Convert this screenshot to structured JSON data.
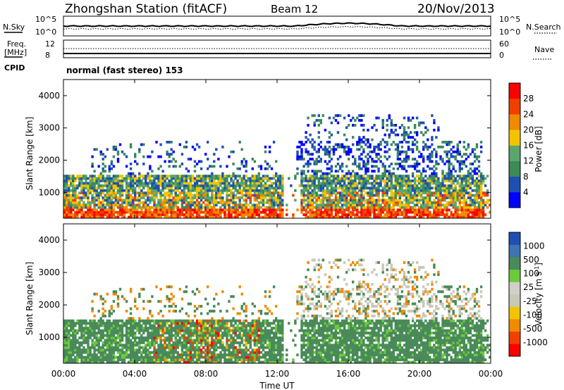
{
  "header": {
    "station": "Zhongshan Station (fitACF)",
    "beam": "Beam 12",
    "date": "20/Nov/2013"
  },
  "param_panels": {
    "nsky_label": "N.Sky",
    "nsky_ticks": [
      "10^5",
      "10^0"
    ],
    "nsearch_label": "N.Search",
    "nsearch_ticks": [
      "10^5",
      "10^0"
    ],
    "freq_label": "Freq.",
    "freq_unit": "[MHz]",
    "freq_ticks": [
      "12",
      "8"
    ],
    "nave_label": "Nave",
    "nave_ticks": [
      "60",
      "0"
    ],
    "cpid_label": "CPID",
    "mode_text": "normal (fast stereo) 153"
  },
  "colors": {
    "power_scale": [
      "#0000ff",
      "#1f4fb4",
      "#3a8a5a",
      "#5aa66e",
      "#f2c400",
      "#f08a00",
      "#f04000",
      "#ff0000"
    ],
    "velocity_scale": [
      "#ff0000",
      "#f04000",
      "#f08a00",
      "#f2c400",
      "#c8c8b8",
      "#d0d0c8",
      "#6acb3a",
      "#4a8a5a",
      "#3f74b0",
      "#1f4fb4"
    ]
  },
  "chart_data": [
    {
      "type": "heatmap",
      "name": "power",
      "ylabel": "Slant Range [km]",
      "yticks": [
        "1000",
        "2000",
        "3000",
        "4000"
      ],
      "ylim": [
        200,
        4500
      ],
      "xlim": [
        0,
        24
      ],
      "colorbar_label": "Power [dB]",
      "colorbar_ticks": [
        "4",
        "8",
        "12",
        "16",
        "20",
        "24",
        "28"
      ],
      "colorbar_range": [
        0,
        30
      ]
    },
    {
      "type": "heatmap",
      "name": "velocity",
      "ylabel": "Slant Range [km]",
      "yticks": [
        "1000",
        "2000",
        "3000",
        "4000"
      ],
      "ylim": [
        200,
        4500
      ],
      "xlim": [
        0,
        24
      ],
      "xlabel": "Time UT",
      "xticks": [
        "00:00",
        "04:00",
        "08:00",
        "12:00",
        "16:00",
        "20:00",
        "00:00"
      ],
      "colorbar_label": "Velocity [m s",
      "colorbar_label_sup": "-1",
      "colorbar_label_close": "]",
      "colorbar_ticks": [
        "1000",
        "500",
        "100",
        "25",
        "-25",
        "-100",
        "-500",
        "-1000"
      ]
    }
  ]
}
